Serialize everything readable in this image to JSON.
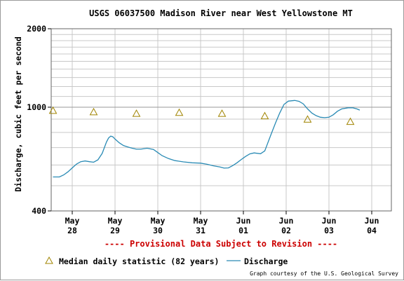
{
  "chart_data": {
    "type": "line",
    "title": "USGS 06037500 Madison River near West Yellowstone MT",
    "ylabel": "Discharge, cubic feet per second",
    "ylim": [
      400,
      2000
    ],
    "yscale": "log",
    "y_tick_labels": [
      "2000",
      "1000",
      "400"
    ],
    "x_ticks": [
      {
        "month": "May",
        "day": "28"
      },
      {
        "month": "May",
        "day": "29"
      },
      {
        "month": "May",
        "day": "30"
      },
      {
        "month": "May",
        "day": "31"
      },
      {
        "month": "Jun",
        "day": "01"
      },
      {
        "month": "Jun",
        "day": "02"
      },
      {
        "month": "Jun",
        "day": "03"
      },
      {
        "month": "Jun",
        "day": "04"
      }
    ],
    "xlim": [
      -0.45,
      7.5
    ],
    "grid": true,
    "provisional_note": "---- Provisional Data Subject to Revision ----",
    "credit": "Graph courtesy of the U.S. Geological Survey",
    "series": [
      {
        "name": "Discharge",
        "color": "#2a8bb5",
        "points": [
          [
            -0.45,
            540
          ],
          [
            -0.3,
            540
          ],
          [
            -0.2,
            550
          ],
          [
            -0.1,
            565
          ],
          [
            0.0,
            585
          ],
          [
            0.1,
            605
          ],
          [
            0.2,
            618
          ],
          [
            0.3,
            622
          ],
          [
            0.4,
            618
          ],
          [
            0.5,
            615
          ],
          [
            0.6,
            628
          ],
          [
            0.7,
            665
          ],
          [
            0.8,
            735
          ],
          [
            0.85,
            762
          ],
          [
            0.9,
            775
          ],
          [
            0.95,
            770
          ],
          [
            1.0,
            755
          ],
          [
            1.1,
            730
          ],
          [
            1.2,
            712
          ],
          [
            1.3,
            704
          ],
          [
            1.4,
            696
          ],
          [
            1.5,
            690
          ],
          [
            1.6,
            690
          ],
          [
            1.75,
            696
          ],
          [
            1.9,
            688
          ],
          [
            2.0,
            670
          ],
          [
            2.1,
            652
          ],
          [
            2.25,
            635
          ],
          [
            2.4,
            624
          ],
          [
            2.6,
            617
          ],
          [
            2.8,
            612
          ],
          [
            3.0,
            610
          ],
          [
            3.15,
            604
          ],
          [
            3.3,
            596
          ],
          [
            3.45,
            590
          ],
          [
            3.55,
            584
          ],
          [
            3.65,
            585
          ],
          [
            3.75,
            597
          ],
          [
            3.85,
            612
          ],
          [
            3.95,
            630
          ],
          [
            4.05,
            647
          ],
          [
            4.15,
            662
          ],
          [
            4.25,
            668
          ],
          [
            4.4,
            663
          ],
          [
            4.5,
            680
          ],
          [
            4.55,
            715
          ],
          [
            4.65,
            790
          ],
          [
            4.75,
            870
          ],
          [
            4.85,
            950
          ],
          [
            4.95,
            1025
          ],
          [
            5.05,
            1055
          ],
          [
            5.2,
            1062
          ],
          [
            5.3,
            1053
          ],
          [
            5.4,
            1030
          ],
          [
            5.5,
            985
          ],
          [
            5.6,
            950
          ],
          [
            5.7,
            928
          ],
          [
            5.8,
            915
          ],
          [
            5.9,
            912
          ],
          [
            6.0,
            915
          ],
          [
            6.1,
            935
          ],
          [
            6.2,
            965
          ],
          [
            6.3,
            985
          ],
          [
            6.45,
            995
          ],
          [
            6.55,
            995
          ],
          [
            6.65,
            985
          ],
          [
            6.72,
            975
          ]
        ]
      }
    ],
    "markers": {
      "name": "Median daily statistic (82 years)",
      "color": "#a08400",
      "points": [
        [
          -0.45,
          970
        ],
        [
          0.5,
          958
        ],
        [
          1.5,
          945
        ],
        [
          2.5,
          953
        ],
        [
          3.5,
          945
        ],
        [
          4.5,
          925
        ],
        [
          5.5,
          898
        ],
        [
          6.5,
          880
        ]
      ]
    }
  }
}
